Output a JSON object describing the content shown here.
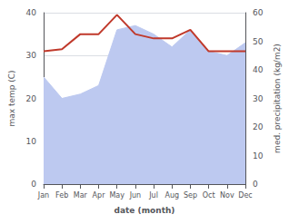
{
  "chart_data": {
    "type": "line",
    "categories": [
      "Jan",
      "Feb",
      "Mar",
      "Apr",
      "May",
      "Jun",
      "Jul",
      "Aug",
      "Sep",
      "Oct",
      "Nov",
      "Dec"
    ],
    "series": [
      {
        "type": "area",
        "color": "#bdc9f0",
        "values": [
          25,
          20,
          21,
          23,
          36,
          37,
          35,
          32,
          36,
          31,
          30,
          33
        ]
      },
      {
        "type": "line",
        "color": "#c0392b",
        "values": [
          31,
          31.5,
          35,
          35,
          39.5,
          35,
          34,
          34,
          36,
          31,
          31,
          31
        ]
      }
    ],
    "xlabel": "date (month)",
    "ylabel": "max temp (C)",
    "y2label": "med. precipitation (kg/m2)",
    "ylim": [
      0,
      40
    ],
    "yticks": [
      0,
      10,
      20,
      30,
      40
    ],
    "y2lim": [
      0,
      60
    ],
    "y2ticks": [
      0,
      10,
      20,
      30,
      40,
      50,
      60
    ],
    "grid": true
  }
}
